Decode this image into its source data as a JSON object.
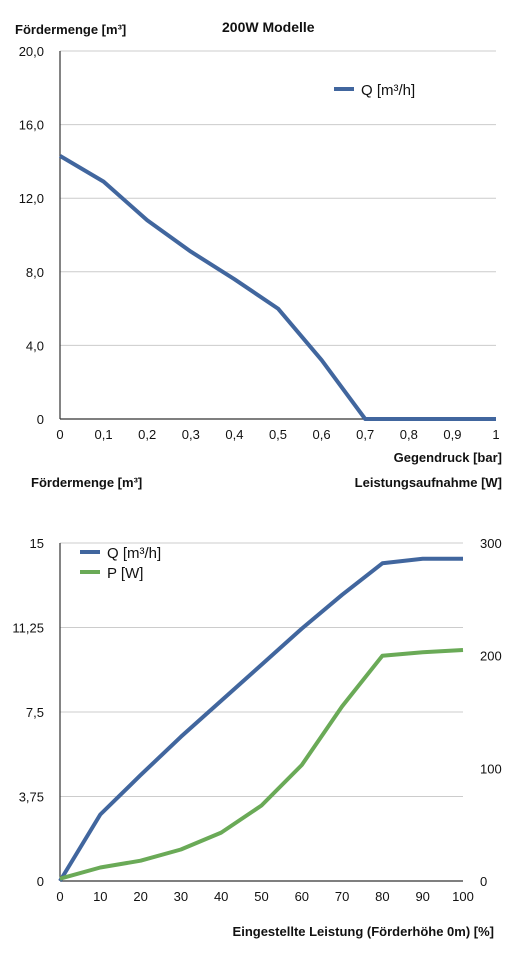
{
  "colors": {
    "q_series": "#41669e",
    "p_series": "#6aaa57",
    "grid": "#cccccc",
    "axis": "#333333"
  },
  "chart_data": [
    {
      "type": "line",
      "title": "200W Modelle",
      "ylabel": "Fördermenge [m³]",
      "xlabel": "Gegendruck [bar]",
      "ylim": [
        0,
        20
      ],
      "xlim": [
        0,
        1
      ],
      "grid": true,
      "legend_position": "top-right",
      "x_ticks": [
        "0",
        "0,1",
        "0,2",
        "0,3",
        "0,4",
        "0,5",
        "0,6",
        "0,7",
        "0,8",
        "0,9",
        "1"
      ],
      "y_ticks": [
        "0",
        "4,0",
        "8,0",
        "12,0",
        "16,0",
        "20,0"
      ],
      "series": [
        {
          "name": "Q [m³/h]",
          "x": [
            0,
            0.1,
            0.2,
            0.3,
            0.4,
            0.5,
            0.6,
            0.7,
            0.8,
            0.9,
            1.0
          ],
          "values": [
            14.3,
            12.9,
            10.8,
            9.1,
            7.6,
            6.0,
            3.2,
            0,
            0,
            0,
            0
          ]
        }
      ]
    },
    {
      "type": "line",
      "title": "",
      "ylabel": "Fördermenge [m³]",
      "y2label": "Leistungsaufnahme [W]",
      "xlabel": "Eingestellte Leistung (Förderhöhe 0m) [%]",
      "ylim": [
        0,
        15
      ],
      "y2lim": [
        0,
        300
      ],
      "xlim": [
        0,
        100
      ],
      "grid": true,
      "legend_position": "top-left",
      "x_ticks": [
        "0",
        "10",
        "20",
        "30",
        "40",
        "50",
        "60",
        "70",
        "80",
        "90",
        "100"
      ],
      "y_ticks": [
        "0",
        "3,75",
        "7,5",
        "11,25",
        "15"
      ],
      "y2_ticks": [
        "0",
        "100",
        "200",
        "300"
      ],
      "series": [
        {
          "name": "Q [m³/h]",
          "axis": "left",
          "x": [
            0,
            10,
            20,
            30,
            40,
            50,
            60,
            70,
            80,
            90,
            100
          ],
          "values": [
            0,
            2.95,
            4.7,
            6.4,
            8.0,
            9.6,
            11.2,
            12.7,
            14.1,
            14.3,
            14.3
          ]
        },
        {
          "name": "P [W]",
          "axis": "right",
          "x": [
            0,
            10,
            20,
            30,
            40,
            50,
            60,
            70,
            80,
            90,
            100
          ],
          "values": [
            2,
            12,
            18,
            28,
            43,
            67,
            103,
            155,
            200,
            203,
            205
          ]
        }
      ]
    }
  ]
}
